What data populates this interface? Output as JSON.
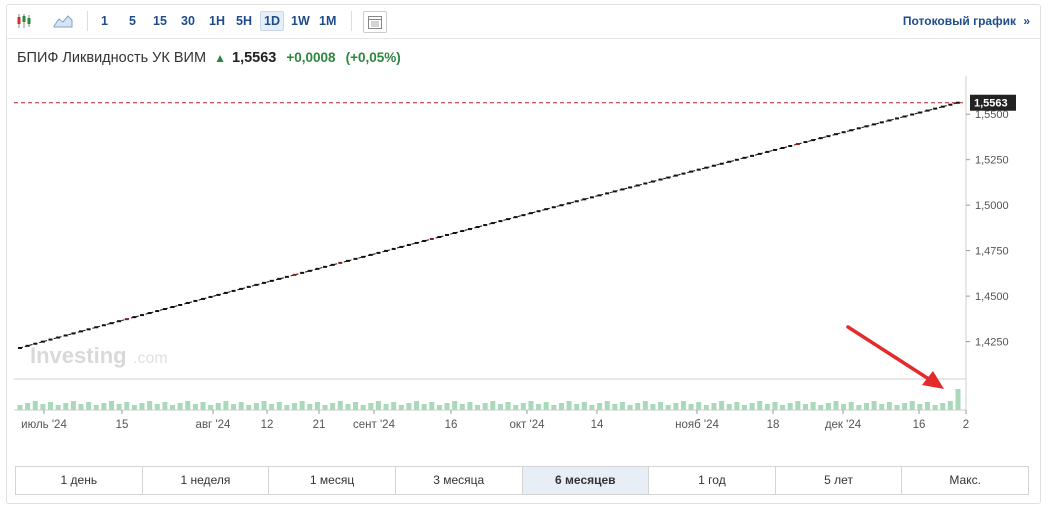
{
  "toolbar": {
    "intervals": [
      "1",
      "5",
      "15",
      "30",
      "1H",
      "5H",
      "1D",
      "1W",
      "1M"
    ],
    "active_interval": "1D",
    "stream_label": "Потоковый график",
    "stream_chevron": "»"
  },
  "instrument": {
    "name": "БПИФ Ликвидность УК ВИМ",
    "price": "1,5563",
    "change": "+0,0008",
    "change_pct": "(+0,05%)",
    "direction": "up"
  },
  "watermark": {
    "brand": "Investing",
    "suffix": ".com"
  },
  "ranges": {
    "items": [
      "1 день",
      "1 неделя",
      "1 месяц",
      "3 месяца",
      "6 месяцев",
      "1 год",
      "5 лет",
      "Макс."
    ],
    "active": "6 месяцев"
  },
  "chart_data": {
    "type": "line",
    "series": [
      {
        "x_start": "2024-07-01",
        "x_end": "2024-12-27",
        "y_start": 1.4215,
        "y_end": 1.5563
      }
    ],
    "current_value_label": "1,5563",
    "y_ticks": [
      "1,5500",
      "1,5250",
      "1,5000",
      "1,4750",
      "1,4500",
      "1,4250"
    ],
    "ylim": [
      1.405,
      1.56
    ],
    "x_ticks": [
      "июль '24",
      "15",
      "авг '24",
      "12",
      "21",
      "сент '24",
      "16",
      "окт '24",
      "14",
      "нояб '24",
      "18",
      "дек '24",
      "16",
      "2"
    ],
    "volume": {
      "last_bar_highlighted": true
    },
    "colors": {
      "line": "#111111",
      "volume": "#a9d9b8",
      "price_line": "#b22222",
      "up": "#2e8540",
      "link": "#1e4d8c",
      "annotation_arrow": "#e32b2b"
    }
  }
}
